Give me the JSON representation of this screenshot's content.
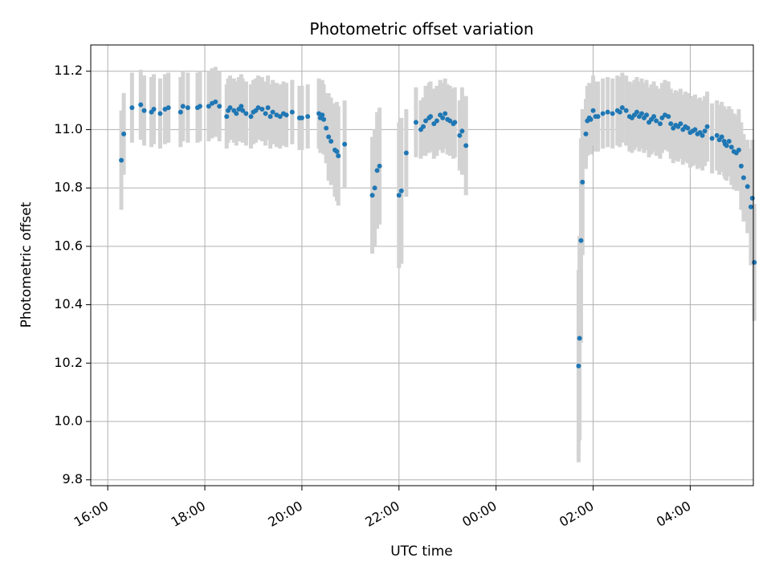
{
  "chart_data": {
    "type": "scatter",
    "title": "Photometric offset variation",
    "xlabel": "UTC time",
    "ylabel": "Photometric offset",
    "x_unit": "hours since 16:00 UTC",
    "xlim": [
      -0.35,
      13.3
    ],
    "ylim": [
      9.78,
      11.29
    ],
    "x_ticks": [
      {
        "value": 0,
        "label": "16:00"
      },
      {
        "value": 2,
        "label": "18:00"
      },
      {
        "value": 4,
        "label": "20:00"
      },
      {
        "value": 6,
        "label": "22:00"
      },
      {
        "value": 8,
        "label": "00:00"
      },
      {
        "value": 10,
        "label": "02:00"
      },
      {
        "value": 12,
        "label": "04:00"
      }
    ],
    "y_ticks": [
      {
        "value": 9.8,
        "label": "9.8"
      },
      {
        "value": 10.0,
        "label": "10.0"
      },
      {
        "value": 10.2,
        "label": "10.2"
      },
      {
        "value": 10.4,
        "label": "10.4"
      },
      {
        "value": 10.6,
        "label": "10.6"
      },
      {
        "value": 10.8,
        "label": "10.8"
      },
      {
        "value": 11.0,
        "label": "11.0"
      },
      {
        "value": 11.2,
        "label": "11.2"
      }
    ],
    "grid": true,
    "point_color": "#1f77b4",
    "errorbar_color": "#d3d3d3",
    "points": [
      [
        0.28,
        10.895,
        0.17
      ],
      [
        0.33,
        10.985,
        0.14
      ],
      [
        0.5,
        11.075,
        0.12
      ],
      [
        0.68,
        11.085,
        0.12
      ],
      [
        0.75,
        11.065,
        0.12
      ],
      [
        0.9,
        11.06,
        0.12
      ],
      [
        0.95,
        11.07,
        0.12
      ],
      [
        1.08,
        11.055,
        0.12
      ],
      [
        1.18,
        11.07,
        0.12
      ],
      [
        1.25,
        11.075,
        0.12
      ],
      [
        1.5,
        11.06,
        0.12
      ],
      [
        1.55,
        11.08,
        0.12
      ],
      [
        1.65,
        11.075,
        0.12
      ],
      [
        1.85,
        11.075,
        0.12
      ],
      [
        1.9,
        11.08,
        0.12
      ],
      [
        2.08,
        11.08,
        0.12
      ],
      [
        2.15,
        11.09,
        0.12
      ],
      [
        2.22,
        11.095,
        0.12
      ],
      [
        2.3,
        11.08,
        0.12
      ],
      [
        2.45,
        11.045,
        0.11
      ],
      [
        2.48,
        11.065,
        0.11
      ],
      [
        2.52,
        11.075,
        0.11
      ],
      [
        2.6,
        11.065,
        0.11
      ],
      [
        2.65,
        11.055,
        0.11
      ],
      [
        2.7,
        11.07,
        0.11
      ],
      [
        2.75,
        11.08,
        0.11
      ],
      [
        2.78,
        11.065,
        0.11
      ],
      [
        2.85,
        11.055,
        0.11
      ],
      [
        2.95,
        11.045,
        0.11
      ],
      [
        3.0,
        11.06,
        0.11
      ],
      [
        3.05,
        11.065,
        0.11
      ],
      [
        3.1,
        11.075,
        0.11
      ],
      [
        3.18,
        11.07,
        0.11
      ],
      [
        3.25,
        11.055,
        0.11
      ],
      [
        3.3,
        11.075,
        0.11
      ],
      [
        3.35,
        11.045,
        0.11
      ],
      [
        3.4,
        11.06,
        0.11
      ],
      [
        3.48,
        11.05,
        0.11
      ],
      [
        3.55,
        11.045,
        0.11
      ],
      [
        3.62,
        11.055,
        0.11
      ],
      [
        3.68,
        11.05,
        0.11
      ],
      [
        3.8,
        11.06,
        0.11
      ],
      [
        3.95,
        11.04,
        0.11
      ],
      [
        4.0,
        11.04,
        0.11
      ],
      [
        4.12,
        11.045,
        0.11
      ],
      [
        4.35,
        11.055,
        0.12
      ],
      [
        4.38,
        11.04,
        0.12
      ],
      [
        4.42,
        11.05,
        0.12
      ],
      [
        4.45,
        11.035,
        0.12
      ],
      [
        4.5,
        11.005,
        0.12
      ],
      [
        4.55,
        10.975,
        0.15
      ],
      [
        4.6,
        10.96,
        0.15
      ],
      [
        4.68,
        10.93,
        0.16
      ],
      [
        4.72,
        10.925,
        0.17
      ],
      [
        4.75,
        10.91,
        0.17
      ],
      [
        4.88,
        10.95,
        0.15
      ],
      [
        5.45,
        10.775,
        0.2
      ],
      [
        5.5,
        10.8,
        0.2
      ],
      [
        5.55,
        10.86,
        0.2
      ],
      [
        5.6,
        10.875,
        0.2
      ],
      [
        6.0,
        10.775,
        0.25
      ],
      [
        6.05,
        10.79,
        0.25
      ],
      [
        6.15,
        10.92,
        0.15
      ],
      [
        6.35,
        11.025,
        0.12
      ],
      [
        6.45,
        11.0,
        0.1
      ],
      [
        6.5,
        11.01,
        0.1
      ],
      [
        6.55,
        11.03,
        0.12
      ],
      [
        6.62,
        11.04,
        0.12
      ],
      [
        6.65,
        11.045,
        0.12
      ],
      [
        6.72,
        11.02,
        0.12
      ],
      [
        6.78,
        11.03,
        0.12
      ],
      [
        6.85,
        11.05,
        0.12
      ],
      [
        6.9,
        11.04,
        0.12
      ],
      [
        6.95,
        11.055,
        0.12
      ],
      [
        7.0,
        11.035,
        0.12
      ],
      [
        7.05,
        11.03,
        0.12
      ],
      [
        7.12,
        11.02,
        0.12
      ],
      [
        7.15,
        11.025,
        0.12
      ],
      [
        7.25,
        10.98,
        0.12
      ],
      [
        7.3,
        10.995,
        0.15
      ],
      [
        7.38,
        10.945,
        0.17
      ],
      [
        9.7,
        10.19,
        0.33
      ],
      [
        9.72,
        10.285,
        0.35
      ],
      [
        9.75,
        10.62,
        0.35
      ],
      [
        9.78,
        10.82,
        0.25
      ],
      [
        9.85,
        10.985,
        0.12
      ],
      [
        9.88,
        11.03,
        0.12
      ],
      [
        9.92,
        11.04,
        0.12
      ],
      [
        9.95,
        11.035,
        0.12
      ],
      [
        10.0,
        11.065,
        0.12
      ],
      [
        10.05,
        11.045,
        0.12
      ],
      [
        10.1,
        11.045,
        0.12
      ],
      [
        10.2,
        11.055,
        0.12
      ],
      [
        10.3,
        11.06,
        0.12
      ],
      [
        10.4,
        11.055,
        0.12
      ],
      [
        10.5,
        11.065,
        0.12
      ],
      [
        10.55,
        11.06,
        0.12
      ],
      [
        10.6,
        11.075,
        0.12
      ],
      [
        10.68,
        11.065,
        0.12
      ],
      [
        10.75,
        11.045,
        0.12
      ],
      [
        10.8,
        11.04,
        0.12
      ],
      [
        10.85,
        11.05,
        0.12
      ],
      [
        10.9,
        11.06,
        0.12
      ],
      [
        10.95,
        11.045,
        0.12
      ],
      [
        11.0,
        11.055,
        0.12
      ],
      [
        11.05,
        11.04,
        0.12
      ],
      [
        11.1,
        11.05,
        0.12
      ],
      [
        11.15,
        11.025,
        0.12
      ],
      [
        11.2,
        11.035,
        0.12
      ],
      [
        11.25,
        11.045,
        0.12
      ],
      [
        11.3,
        11.03,
        0.12
      ],
      [
        11.38,
        11.02,
        0.12
      ],
      [
        11.42,
        11.04,
        0.12
      ],
      [
        11.48,
        11.05,
        0.12
      ],
      [
        11.55,
        11.045,
        0.12
      ],
      [
        11.6,
        11.02,
        0.12
      ],
      [
        11.65,
        11.005,
        0.12
      ],
      [
        11.7,
        11.015,
        0.12
      ],
      [
        11.75,
        11.01,
        0.12
      ],
      [
        11.8,
        11.02,
        0.12
      ],
      [
        11.85,
        11.0,
        0.12
      ],
      [
        11.9,
        11.01,
        0.12
      ],
      [
        11.95,
        11.005,
        0.12
      ],
      [
        12.0,
        10.99,
        0.12
      ],
      [
        12.05,
        10.995,
        0.12
      ],
      [
        12.1,
        11.0,
        0.12
      ],
      [
        12.15,
        10.985,
        0.12
      ],
      [
        12.2,
        10.99,
        0.12
      ],
      [
        12.25,
        10.98,
        0.12
      ],
      [
        12.3,
        10.995,
        0.12
      ],
      [
        12.35,
        11.01,
        0.12
      ],
      [
        12.45,
        10.97,
        0.12
      ],
      [
        12.55,
        10.98,
        0.12
      ],
      [
        12.6,
        10.965,
        0.12
      ],
      [
        12.65,
        10.975,
        0.12
      ],
      [
        12.7,
        10.96,
        0.12
      ],
      [
        12.72,
        10.95,
        0.12
      ],
      [
        12.75,
        10.945,
        0.12
      ],
      [
        12.8,
        10.96,
        0.12
      ],
      [
        12.85,
        10.94,
        0.13
      ],
      [
        12.9,
        10.925,
        0.13
      ],
      [
        12.95,
        10.92,
        0.13
      ],
      [
        13.0,
        10.93,
        0.14
      ],
      [
        13.05,
        10.875,
        0.15
      ],
      [
        13.1,
        10.835,
        0.15
      ],
      [
        13.18,
        10.805,
        0.16
      ],
      [
        13.25,
        10.735,
        0.2
      ],
      [
        13.28,
        10.765,
        0.2
      ],
      [
        13.32,
        10.545,
        0.2
      ]
    ]
  }
}
